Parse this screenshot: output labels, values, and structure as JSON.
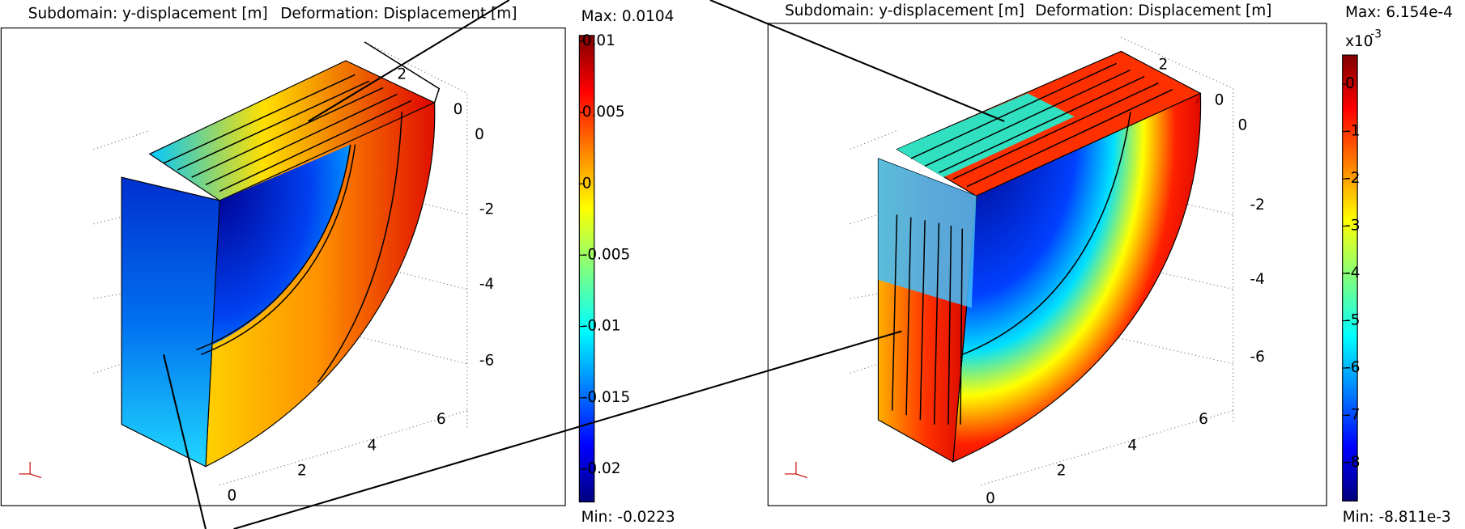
{
  "panels": [
    {
      "subdomain": "Subdomain: y-displacement [m]",
      "deformation": "Deformation: Displacement [m]",
      "max": {
        "value": 0.0104,
        "label": "Max: 0.0104"
      },
      "min": {
        "value": -0.0223,
        "label": "Min: -0.0223"
      },
      "colorbar_ticks": [
        0.01,
        0.005,
        0,
        -0.005,
        -0.01,
        -0.015,
        -0.02
      ],
      "axis_labels": [
        "2",
        "0",
        "0",
        "-2",
        "-4",
        "-6",
        "6",
        "4",
        "2",
        "0"
      ]
    },
    {
      "subdomain": "Subdomain: y-displacement [m]",
      "deformation": "Deformation: Displacement [m]",
      "max": {
        "value": 0.6154,
        "label": "Max: 6.154e-4"
      },
      "min": {
        "value": -8.811,
        "label": "Min: -8.811e-3"
      },
      "colorbar_scale": {
        "base": "x10",
        "exponent": "-3"
      },
      "colorbar_ticks": [
        0,
        -1,
        -2,
        -3,
        -4,
        -5,
        -6,
        -7,
        -8
      ],
      "axis_labels": [
        "2",
        "0",
        "0",
        "-2",
        "-4",
        "-6",
        "6",
        "4",
        "2",
        "0"
      ]
    }
  ]
}
